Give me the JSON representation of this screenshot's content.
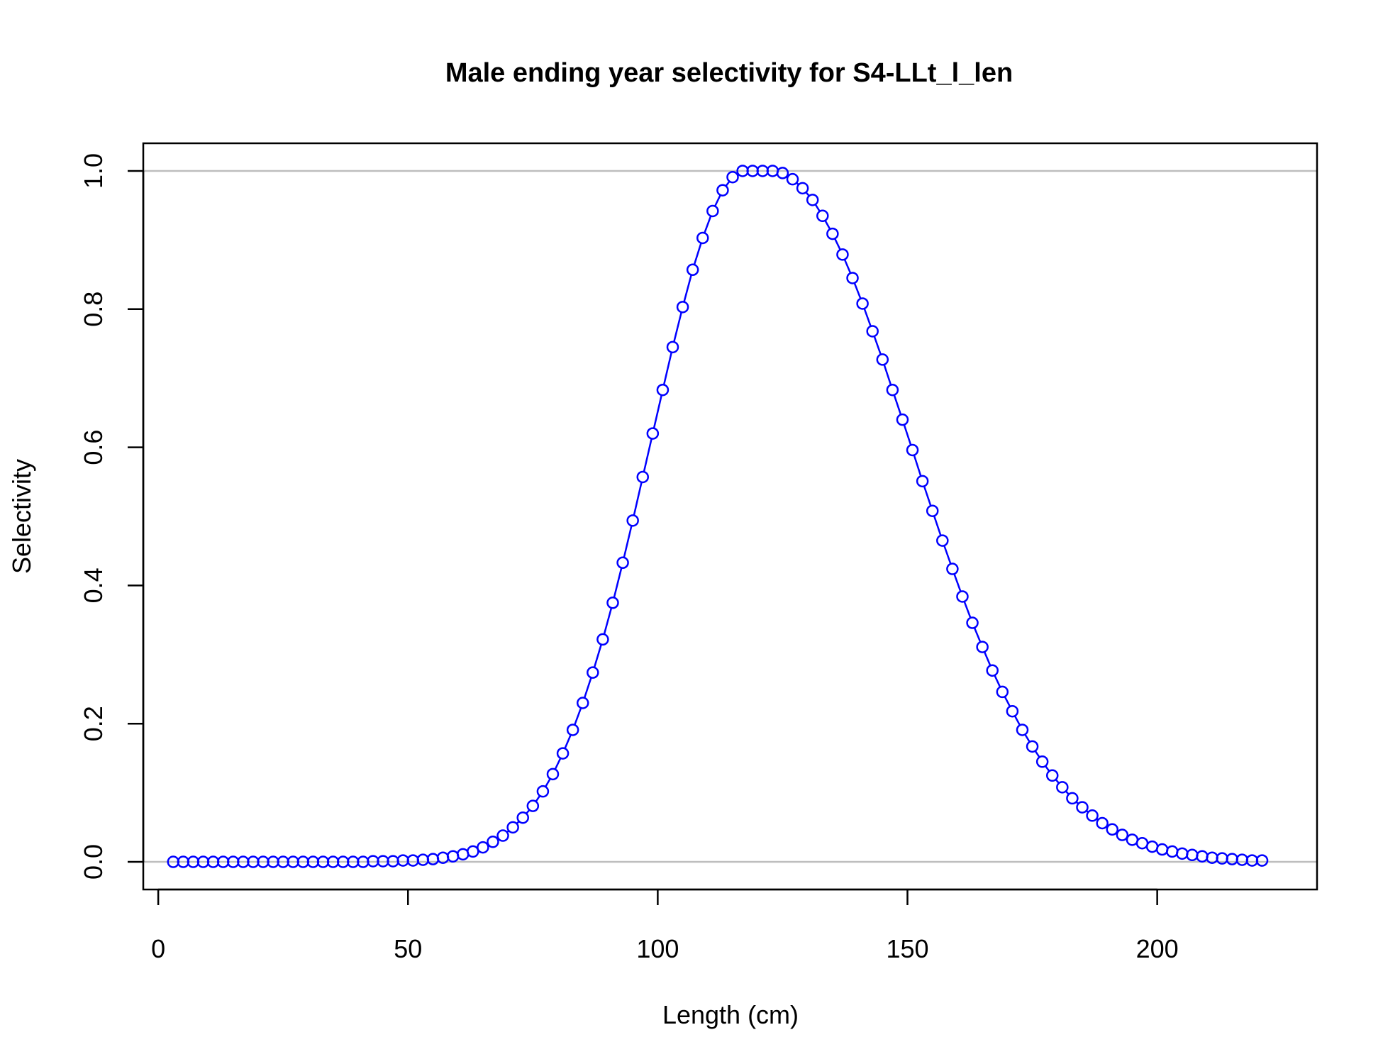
{
  "chart_data": {
    "type": "line",
    "title": "Male ending year selectivity for S4-LLt_l_len",
    "xlabel": "Length (cm)",
    "ylabel": "Selectivity",
    "xlim": [
      -3,
      232
    ],
    "ylim": [
      -0.04,
      1.04
    ],
    "x_ticks": [
      "0",
      "50",
      "100",
      "150",
      "200"
    ],
    "y_ticks": [
      "0.0",
      "0.2",
      "0.4",
      "0.6",
      "0.8",
      "1.0"
    ],
    "reference_lines": [
      0,
      1
    ],
    "grid": false,
    "legend": "none",
    "colors": {
      "series": "#0000ff",
      "reference": "#bebebe",
      "axes": "#000000"
    },
    "series": [
      {
        "marker": "open-circle",
        "x": [
          3,
          5,
          7,
          9,
          11,
          13,
          15,
          17,
          19,
          21,
          23,
          25,
          27,
          29,
          31,
          33,
          35,
          37,
          39,
          41,
          43,
          45,
          47,
          49,
          51,
          53,
          55,
          57,
          59,
          61,
          63,
          65,
          67,
          69,
          71,
          73,
          75,
          77,
          79,
          81,
          83,
          85,
          87,
          89,
          91,
          93,
          95,
          97,
          99,
          101,
          103,
          105,
          107,
          109,
          111,
          113,
          115,
          117,
          119,
          121,
          123,
          125,
          127,
          129,
          131,
          133,
          135,
          137,
          139,
          141,
          143,
          145,
          147,
          149,
          151,
          153,
          155,
          157,
          159,
          161,
          163,
          165,
          167,
          169,
          171,
          173,
          175,
          177,
          179,
          181,
          183,
          185,
          187,
          189,
          191,
          193,
          195,
          197,
          199,
          201,
          203,
          205,
          207,
          209,
          211,
          213,
          215,
          217,
          219,
          221
        ],
        "y": [
          0,
          0,
          0,
          0,
          0,
          0,
          0,
          0,
          0,
          0,
          0,
          0,
          0,
          0,
          0,
          0,
          0,
          0,
          0,
          0,
          0.001,
          0.001,
          0.001,
          0.002,
          0.002,
          0.003,
          0.004,
          0.006,
          0.008,
          0.011,
          0.015,
          0.021,
          0.029,
          0.038,
          0.05,
          0.064,
          0.081,
          0.102,
          0.127,
          0.157,
          0.191,
          0.23,
          0.274,
          0.322,
          0.375,
          0.433,
          0.494,
          0.557,
          0.62,
          0.683,
          0.745,
          0.803,
          0.857,
          0.903,
          0.942,
          0.972,
          0.991,
          1.0,
          1.0,
          1.0,
          1.0,
          0.997,
          0.988,
          0.975,
          0.958,
          0.935,
          0.909,
          0.879,
          0.845,
          0.808,
          0.768,
          0.727,
          0.683,
          0.64,
          0.596,
          0.551,
          0.508,
          0.465,
          0.424,
          0.384,
          0.346,
          0.311,
          0.277,
          0.246,
          0.218,
          0.191,
          0.167,
          0.145,
          0.125,
          0.108,
          0.092,
          0.079,
          0.067,
          0.056,
          0.047,
          0.039,
          0.032,
          0.027,
          0.022,
          0.018,
          0.015,
          0.012,
          0.01,
          0.008,
          0.006,
          0.005,
          0.004,
          0.003,
          0.002,
          0.002
        ]
      }
    ]
  }
}
